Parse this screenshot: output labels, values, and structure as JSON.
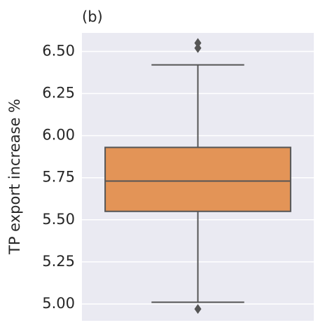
{
  "chart_data": {
    "type": "box",
    "title": "(b)",
    "ylabel": "TP export increase %",
    "color": "#e39457",
    "line_color": "#555555",
    "background": "#eaeaf2",
    "grid": true,
    "ylim": [
      4.9,
      6.61
    ],
    "yticks": [
      {
        "value": 5,
        "label": "5.00"
      },
      5.25,
      {
        "value": 5.5,
        "label": "5.50"
      },
      5.75,
      {
        "value": 6,
        "label": "6.00"
      },
      6.25,
      {
        "value": 6.5,
        "label": "6.50"
      }
    ],
    "boxes": [
      {
        "whisker_low": 5.01,
        "q1": 5.55,
        "median": 5.73,
        "q3": 5.93,
        "whisker_high": 6.42,
        "outliers": [
          6.55,
          6.52,
          4.97
        ]
      }
    ]
  }
}
